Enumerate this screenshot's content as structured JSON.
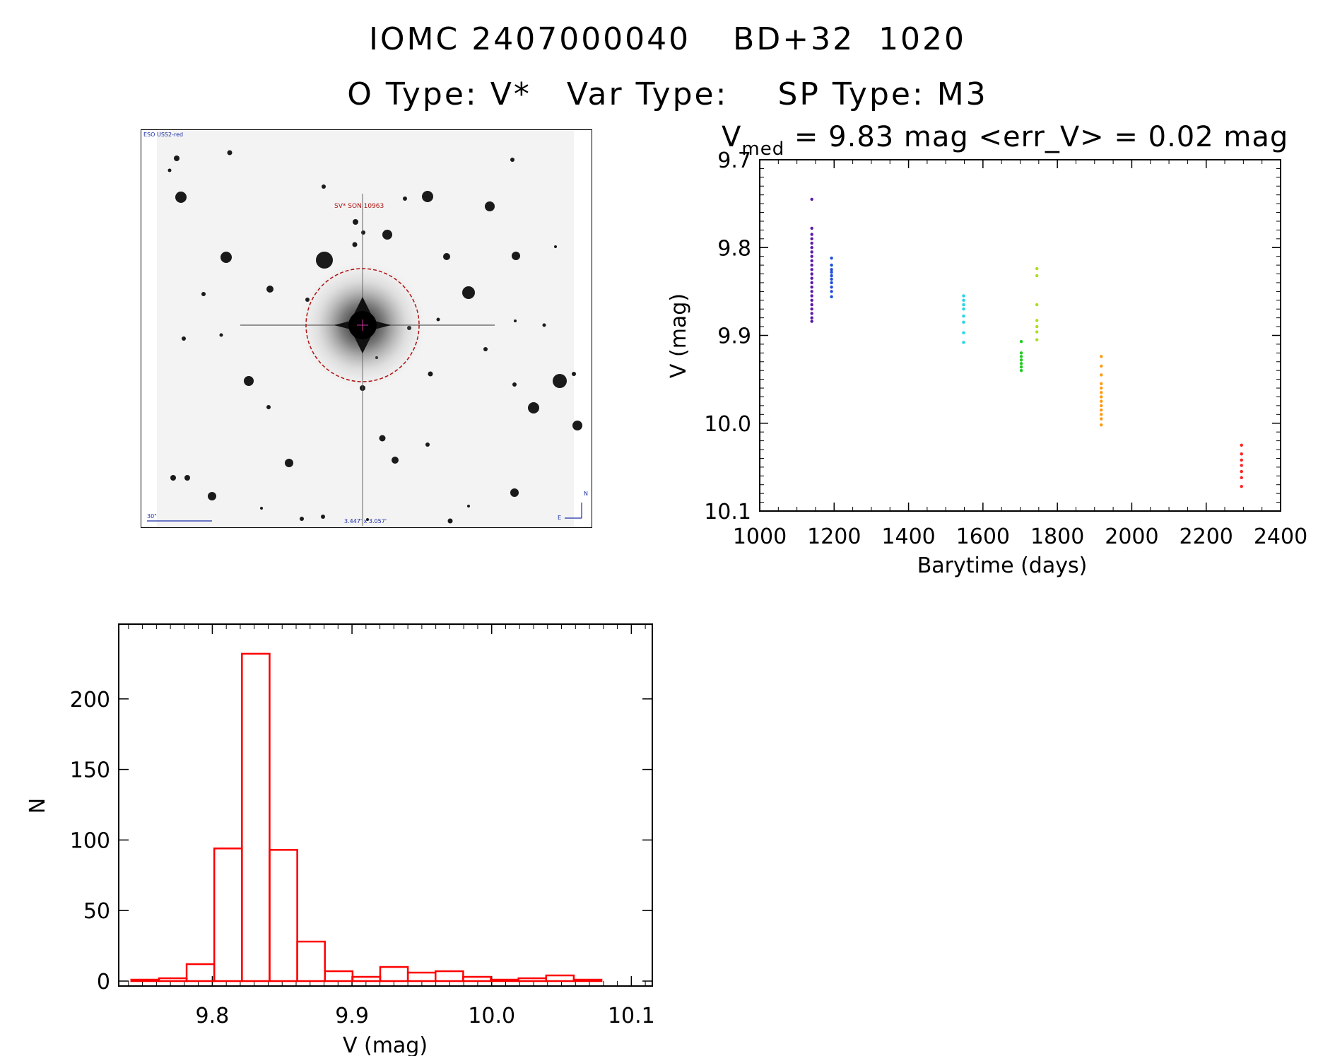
{
  "header": {
    "iomc_id": "IOMC 2407000040",
    "bd_id": "BD+32  1020",
    "o_type": "O Type: V*",
    "var_type": "Var Type:",
    "sp_type": "SP Type: M3"
  },
  "image_panel": {
    "survey_label": "ESO USS2-red",
    "object_label": "SV* SON 10963",
    "scale_label": "30\"",
    "size_label": "3.447' x 3.057'",
    "compass_n": "N",
    "compass_e": "E"
  },
  "colors": {
    "histogram": "#ff0000",
    "axes": "#000000"
  },
  "chart_data": [
    {
      "type": "scatter",
      "title_prefix": "V",
      "title_subscript": "med",
      "title_rest": " = 9.83 mag <err_V> = 0.02 mag",
      "xlabel": "Barytime (days)",
      "ylabel": "V (mag)",
      "xlim": [
        1000,
        2400
      ],
      "ylim": [
        10.1,
        9.7
      ],
      "y_inverted": true,
      "x_ticks": [
        "1000",
        "1200",
        "1400",
        "1600",
        "1800",
        "2000",
        "2200",
        "2400"
      ],
      "y_ticks": [
        "9.7",
        "9.8",
        "9.9",
        "10.0",
        "10.1"
      ],
      "series": [
        {
          "color": "#5a1aa8",
          "x": 1140,
          "y": [
            9.745,
            9.778,
            9.785,
            9.79,
            9.795,
            9.8,
            9.805,
            9.81,
            9.815,
            9.82,
            9.825,
            9.83,
            9.835,
            9.84,
            9.845,
            9.85,
            9.855,
            9.86,
            9.865,
            9.87,
            9.875,
            9.88,
            9.884
          ]
        },
        {
          "color": "#1f4fd8",
          "x": 1193,
          "y": [
            9.812,
            9.82,
            9.825,
            9.828,
            9.832,
            9.836,
            9.84,
            9.845,
            9.85,
            9.856
          ]
        },
        {
          "color": "#22d8e8",
          "x": 1548,
          "y": [
            9.855,
            9.86,
            9.865,
            9.87,
            9.878,
            9.885,
            9.897,
            9.908
          ]
        },
        {
          "color": "#22cc22",
          "x": 1703,
          "y": [
            9.907,
            9.92,
            9.924,
            9.928,
            9.932,
            9.936,
            9.94
          ]
        },
        {
          "color": "#a8e020",
          "x": 1745,
          "y": [
            9.824,
            9.832,
            9.865,
            9.883,
            9.89,
            9.896,
            9.905
          ]
        },
        {
          "color": "#ff9a10",
          "x": 1918,
          "y": [
            9.924,
            9.935,
            9.945,
            9.955,
            9.96,
            9.965,
            9.97,
            9.975,
            9.98,
            9.985,
            9.99,
            9.995,
            10.002
          ]
        },
        {
          "color": "#ff2020",
          "x": 2295,
          "y": [
            10.025,
            10.035,
            10.042,
            10.048,
            10.055,
            10.062,
            10.072
          ]
        }
      ]
    },
    {
      "type": "bar",
      "xlabel": "V (mag)",
      "ylabel": "N",
      "xlim": [
        9.733,
        10.115
      ],
      "ylim": [
        0,
        253
      ],
      "x_ticks": [
        "9.8",
        "9.9",
        "10.0",
        "10.1"
      ],
      "y_ticks": [
        "0",
        "50",
        "100",
        "150",
        "200"
      ],
      "bin_width": 0.0198,
      "bin_starts": [
        9.742,
        9.7618,
        9.7816,
        9.8014,
        9.8212,
        9.841,
        9.8608,
        9.8806,
        9.9004,
        9.9202,
        9.94,
        9.9598,
        9.9796,
        9.9994,
        10.0192,
        10.039,
        10.0588
      ],
      "values": [
        1,
        2,
        12,
        94,
        232,
        93,
        28,
        7,
        3,
        10,
        6,
        7,
        3,
        1,
        2,
        4,
        1
      ]
    }
  ]
}
